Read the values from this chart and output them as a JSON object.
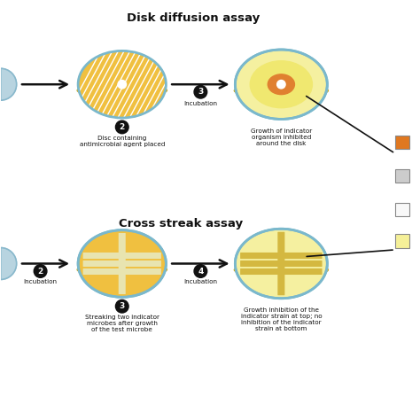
{
  "title_top": "Disk diffusion assay",
  "title_bottom": "Cross streak assay",
  "bg_color": "#ffffff",
  "petri_outer_color": "#7ab8cc",
  "petri_fill_orange": "#f0c040",
  "inhibition_zone_color": "#f5f0a0",
  "inhibition_outer_color": "#f0e870",
  "hatch_color": "#ffffff",
  "arrow_color": "#111111",
  "number_bg": "#111111",
  "number_fg": "#ffffff",
  "orange_zone": "#e08030",
  "vial_color": "#b8d4e0",
  "vial_edge": "#88b8cc",
  "shadow_color": "#c8a830",
  "rim_color": "#c8a820",
  "streak_white": "#e8e4b0",
  "result_streak": "#d4b840",
  "legend_colors": [
    "#e07820",
    "#cccccc",
    "#f8f8f8",
    "#f5f098"
  ],
  "legend_edge": "#888888",
  "label2_disk": "Disc containing\nantimicrobial agent placed",
  "label3_disk": "Incubation",
  "label_result_disk": "Growth of indicator\norganism inhibited\naround the disk",
  "label2_cross": "Incubation",
  "label3_cross": "Streaking two indicator\nmicrobes after growth\nof the test microbe",
  "label4_cross": "Incubation",
  "label_result_cross": "Growth inhibition of the\nindicator strain at top; no\ninhibition of the indicator\nstrain at bottom",
  "figsize": [
    4.74,
    4.74
  ],
  "dpi": 100
}
